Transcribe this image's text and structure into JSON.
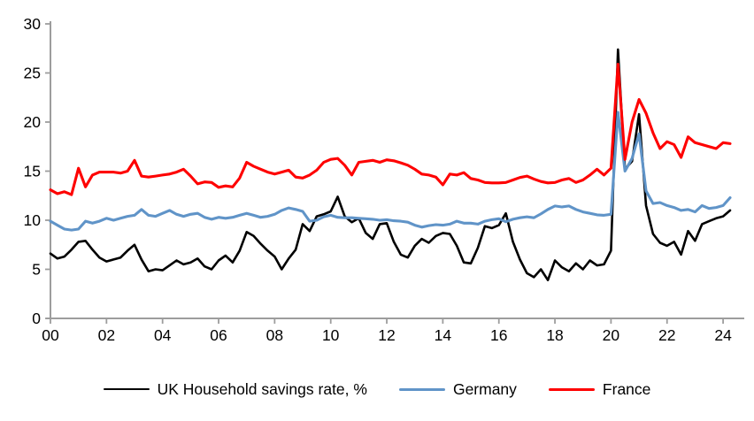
{
  "chart_data": {
    "type": "line",
    "title": "",
    "x_start_year": 2000,
    "points_per_year": 4,
    "x_axis": {
      "tick_labels": [
        "00",
        "02",
        "04",
        "06",
        "08",
        "10",
        "12",
        "14",
        "16",
        "18",
        "20",
        "22",
        "24"
      ],
      "tick_step_years": 2,
      "range_years": [
        0,
        24.5
      ]
    },
    "y_axis": {
      "ticks": [
        "0",
        "5",
        "10",
        "15",
        "20",
        "25",
        "30"
      ],
      "tick_values": [
        0,
        5,
        10,
        15,
        20,
        25,
        30
      ],
      "range": [
        0,
        30
      ]
    },
    "grid": false,
    "legend_position": "bottom",
    "axis_color": "#9d9d9d",
    "series": [
      {
        "name": "UK Household savings rate, %",
        "color": "#000000",
        "stroke_width": 2.6,
        "values": [
          6.6,
          6.1,
          6.3,
          7.0,
          7.8,
          7.9,
          7.0,
          6.2,
          5.8,
          6.0,
          6.2,
          6.9,
          7.5,
          6.0,
          4.8,
          5.0,
          4.9,
          5.4,
          5.9,
          5.5,
          5.7,
          6.1,
          5.3,
          5.0,
          5.9,
          6.4,
          5.7,
          6.9,
          8.8,
          8.4,
          7.6,
          6.9,
          6.3,
          5.0,
          6.1,
          7.0,
          9.6,
          8.9,
          10.4,
          10.6,
          10.9,
          12.4,
          10.4,
          9.8,
          10.2,
          8.7,
          8.1,
          9.6,
          9.7,
          7.8,
          6.5,
          6.2,
          7.4,
          8.1,
          7.7,
          8.4,
          8.7,
          8.6,
          7.4,
          5.7,
          5.6,
          7.2,
          9.4,
          9.2,
          9.5,
          10.7,
          7.8,
          6.0,
          4.6,
          4.2,
          5.0,
          3.9,
          5.9,
          5.2,
          4.8,
          5.6,
          5.0,
          5.9,
          5.4,
          5.5,
          6.9,
          27.4,
          15.2,
          16.0,
          20.8,
          11.5,
          8.6,
          7.7,
          7.4,
          7.8,
          6.5,
          8.9,
          7.9,
          9.6,
          9.9,
          10.2,
          10.4,
          11.0
        ]
      },
      {
        "name": "Germany",
        "color": "#6094c8",
        "stroke_width": 3.1,
        "values": [
          9.9,
          9.5,
          9.1,
          9.0,
          9.1,
          9.9,
          9.7,
          9.9,
          10.2,
          10.0,
          10.2,
          10.4,
          10.5,
          11.1,
          10.5,
          10.4,
          10.7,
          11.0,
          10.6,
          10.4,
          10.6,
          10.7,
          10.3,
          10.1,
          10.3,
          10.2,
          10.3,
          10.5,
          10.7,
          10.5,
          10.3,
          10.4,
          10.6,
          11.0,
          11.25,
          11.1,
          10.9,
          9.9,
          10.0,
          10.35,
          10.5,
          10.3,
          10.25,
          10.25,
          10.2,
          10.15,
          10.1,
          10.0,
          10.05,
          9.95,
          9.9,
          9.8,
          9.5,
          9.3,
          9.45,
          9.55,
          9.5,
          9.6,
          9.9,
          9.7,
          9.7,
          9.6,
          9.9,
          10.05,
          10.15,
          9.85,
          10.1,
          10.25,
          10.35,
          10.25,
          10.65,
          11.1,
          11.45,
          11.35,
          11.45,
          11.1,
          10.85,
          10.7,
          10.55,
          10.5,
          10.6,
          21.0,
          15.0,
          16.3,
          18.8,
          13.0,
          11.7,
          11.8,
          11.5,
          11.3,
          11.0,
          11.1,
          10.85,
          11.5,
          11.2,
          11.3,
          11.5,
          12.3
        ]
      },
      {
        "name": "France",
        "color": "#fe0000",
        "stroke_width": 3.1,
        "values": [
          13.1,
          12.7,
          12.9,
          12.6,
          15.3,
          13.4,
          14.6,
          14.9,
          14.9,
          14.9,
          14.8,
          15.0,
          16.1,
          14.5,
          14.4,
          14.5,
          14.6,
          14.7,
          14.9,
          15.2,
          14.5,
          13.7,
          13.9,
          13.85,
          13.35,
          13.5,
          13.4,
          14.3,
          15.9,
          15.5,
          15.2,
          14.9,
          14.7,
          14.9,
          15.1,
          14.4,
          14.3,
          14.6,
          15.1,
          15.9,
          16.2,
          16.3,
          15.6,
          14.6,
          15.9,
          16.0,
          16.1,
          15.9,
          16.15,
          16.05,
          15.85,
          15.6,
          15.2,
          14.7,
          14.6,
          14.4,
          13.6,
          14.7,
          14.6,
          14.85,
          14.25,
          14.1,
          13.85,
          13.8,
          13.8,
          13.85,
          14.1,
          14.35,
          14.5,
          14.2,
          13.95,
          13.8,
          13.85,
          14.1,
          14.25,
          13.85,
          14.1,
          14.6,
          15.2,
          14.6,
          15.3,
          25.9,
          16.2,
          20.0,
          22.3,
          20.9,
          18.9,
          17.3,
          18.0,
          17.7,
          16.4,
          18.5,
          17.9,
          17.7,
          17.5,
          17.3,
          17.9,
          17.8
        ]
      }
    ]
  }
}
